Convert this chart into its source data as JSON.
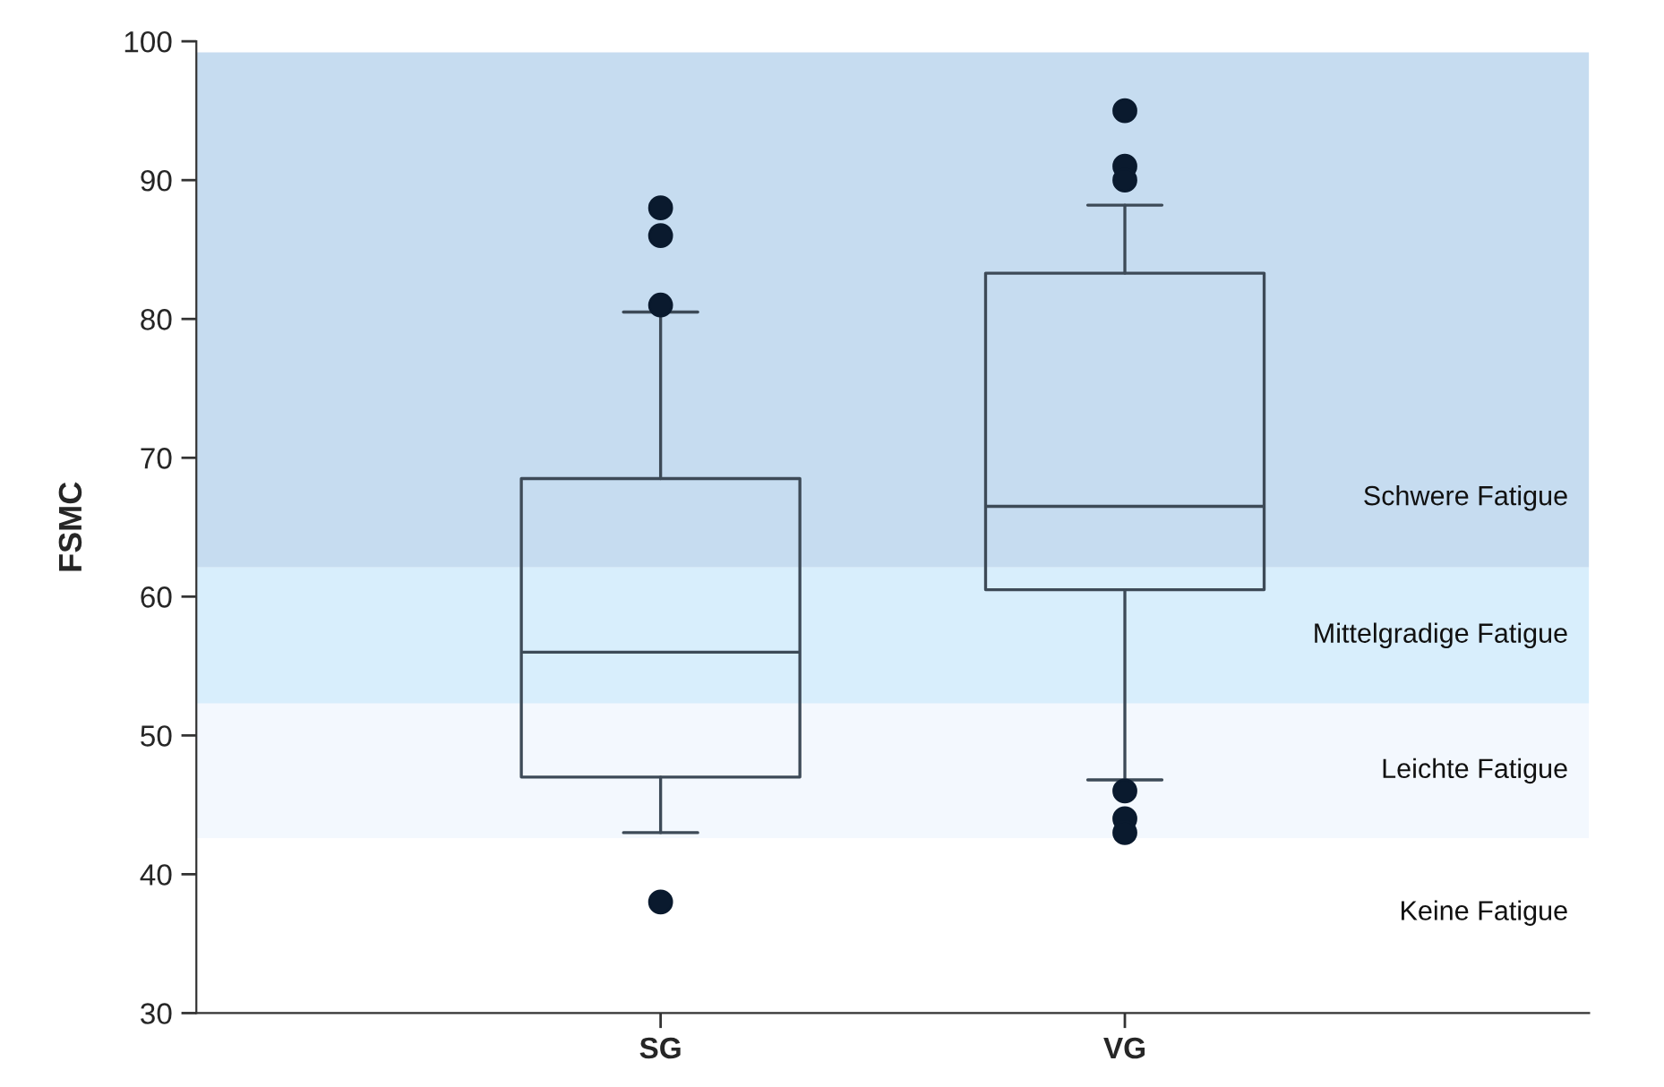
{
  "chart_data": {
    "type": "box",
    "ylabel": "FSMC",
    "categories": [
      "SG",
      "VG"
    ],
    "boxes": [
      {
        "low": 43,
        "q1": 47,
        "median": 56,
        "q3": 68.5,
        "high": 80.5,
        "outliers": [
          88,
          86,
          81,
          38
        ]
      },
      {
        "low": 46.8,
        "q1": 60.5,
        "median": 66.5,
        "q3": 83.3,
        "high": 88.2,
        "outliers": [
          95,
          91,
          90,
          46,
          44,
          43
        ]
      }
    ],
    "ylim": [
      30,
      100
    ],
    "yticks": [
      30,
      40,
      50,
      60,
      70,
      80,
      90,
      100
    ],
    "bands": [
      {
        "axis": "y",
        "from": 62.1,
        "to": 99.2,
        "label": "Schwere Fatigue",
        "color": "#c6dcf0"
      },
      {
        "axis": "y",
        "from": 52.3,
        "to": 62.1,
        "label": "Mittelgradige Fatigue",
        "color": "#d8eefc"
      },
      {
        "axis": "y",
        "from": 42.6,
        "to": 52.3,
        "label": "Leichte Fatigue",
        "color": "#f3f8fe"
      }
    ],
    "annotations": [
      "Keine Fatigue"
    ],
    "color": "#3d4a57",
    "grid": false,
    "legend": false
  }
}
